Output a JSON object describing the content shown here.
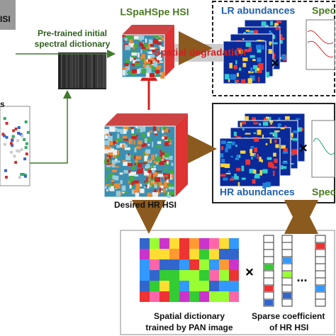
{
  "labels": {
    "top_left": "ISI",
    "left": "s",
    "dictionary": [
      "Pre-trained initial",
      "spectral dictionary"
    ],
    "lspahspe": "LSpaHSpe HSI",
    "lr_abundances": "LR abundances",
    "spec_top": "Spec",
    "spatial_degradation": "Spatial degradation",
    "desired": "Desired HR HSI",
    "hr_abundances": "HR abundances",
    "spec_bottom": "Spec",
    "spatial_dictionary": [
      "Spatial dictionary",
      "trained by PAN image"
    ],
    "sparse": [
      "Sparse coefficient",
      "of HR HSI"
    ],
    "times": [
      "×",
      "×",
      "×"
    ],
    "ellipsis": "..."
  }
}
